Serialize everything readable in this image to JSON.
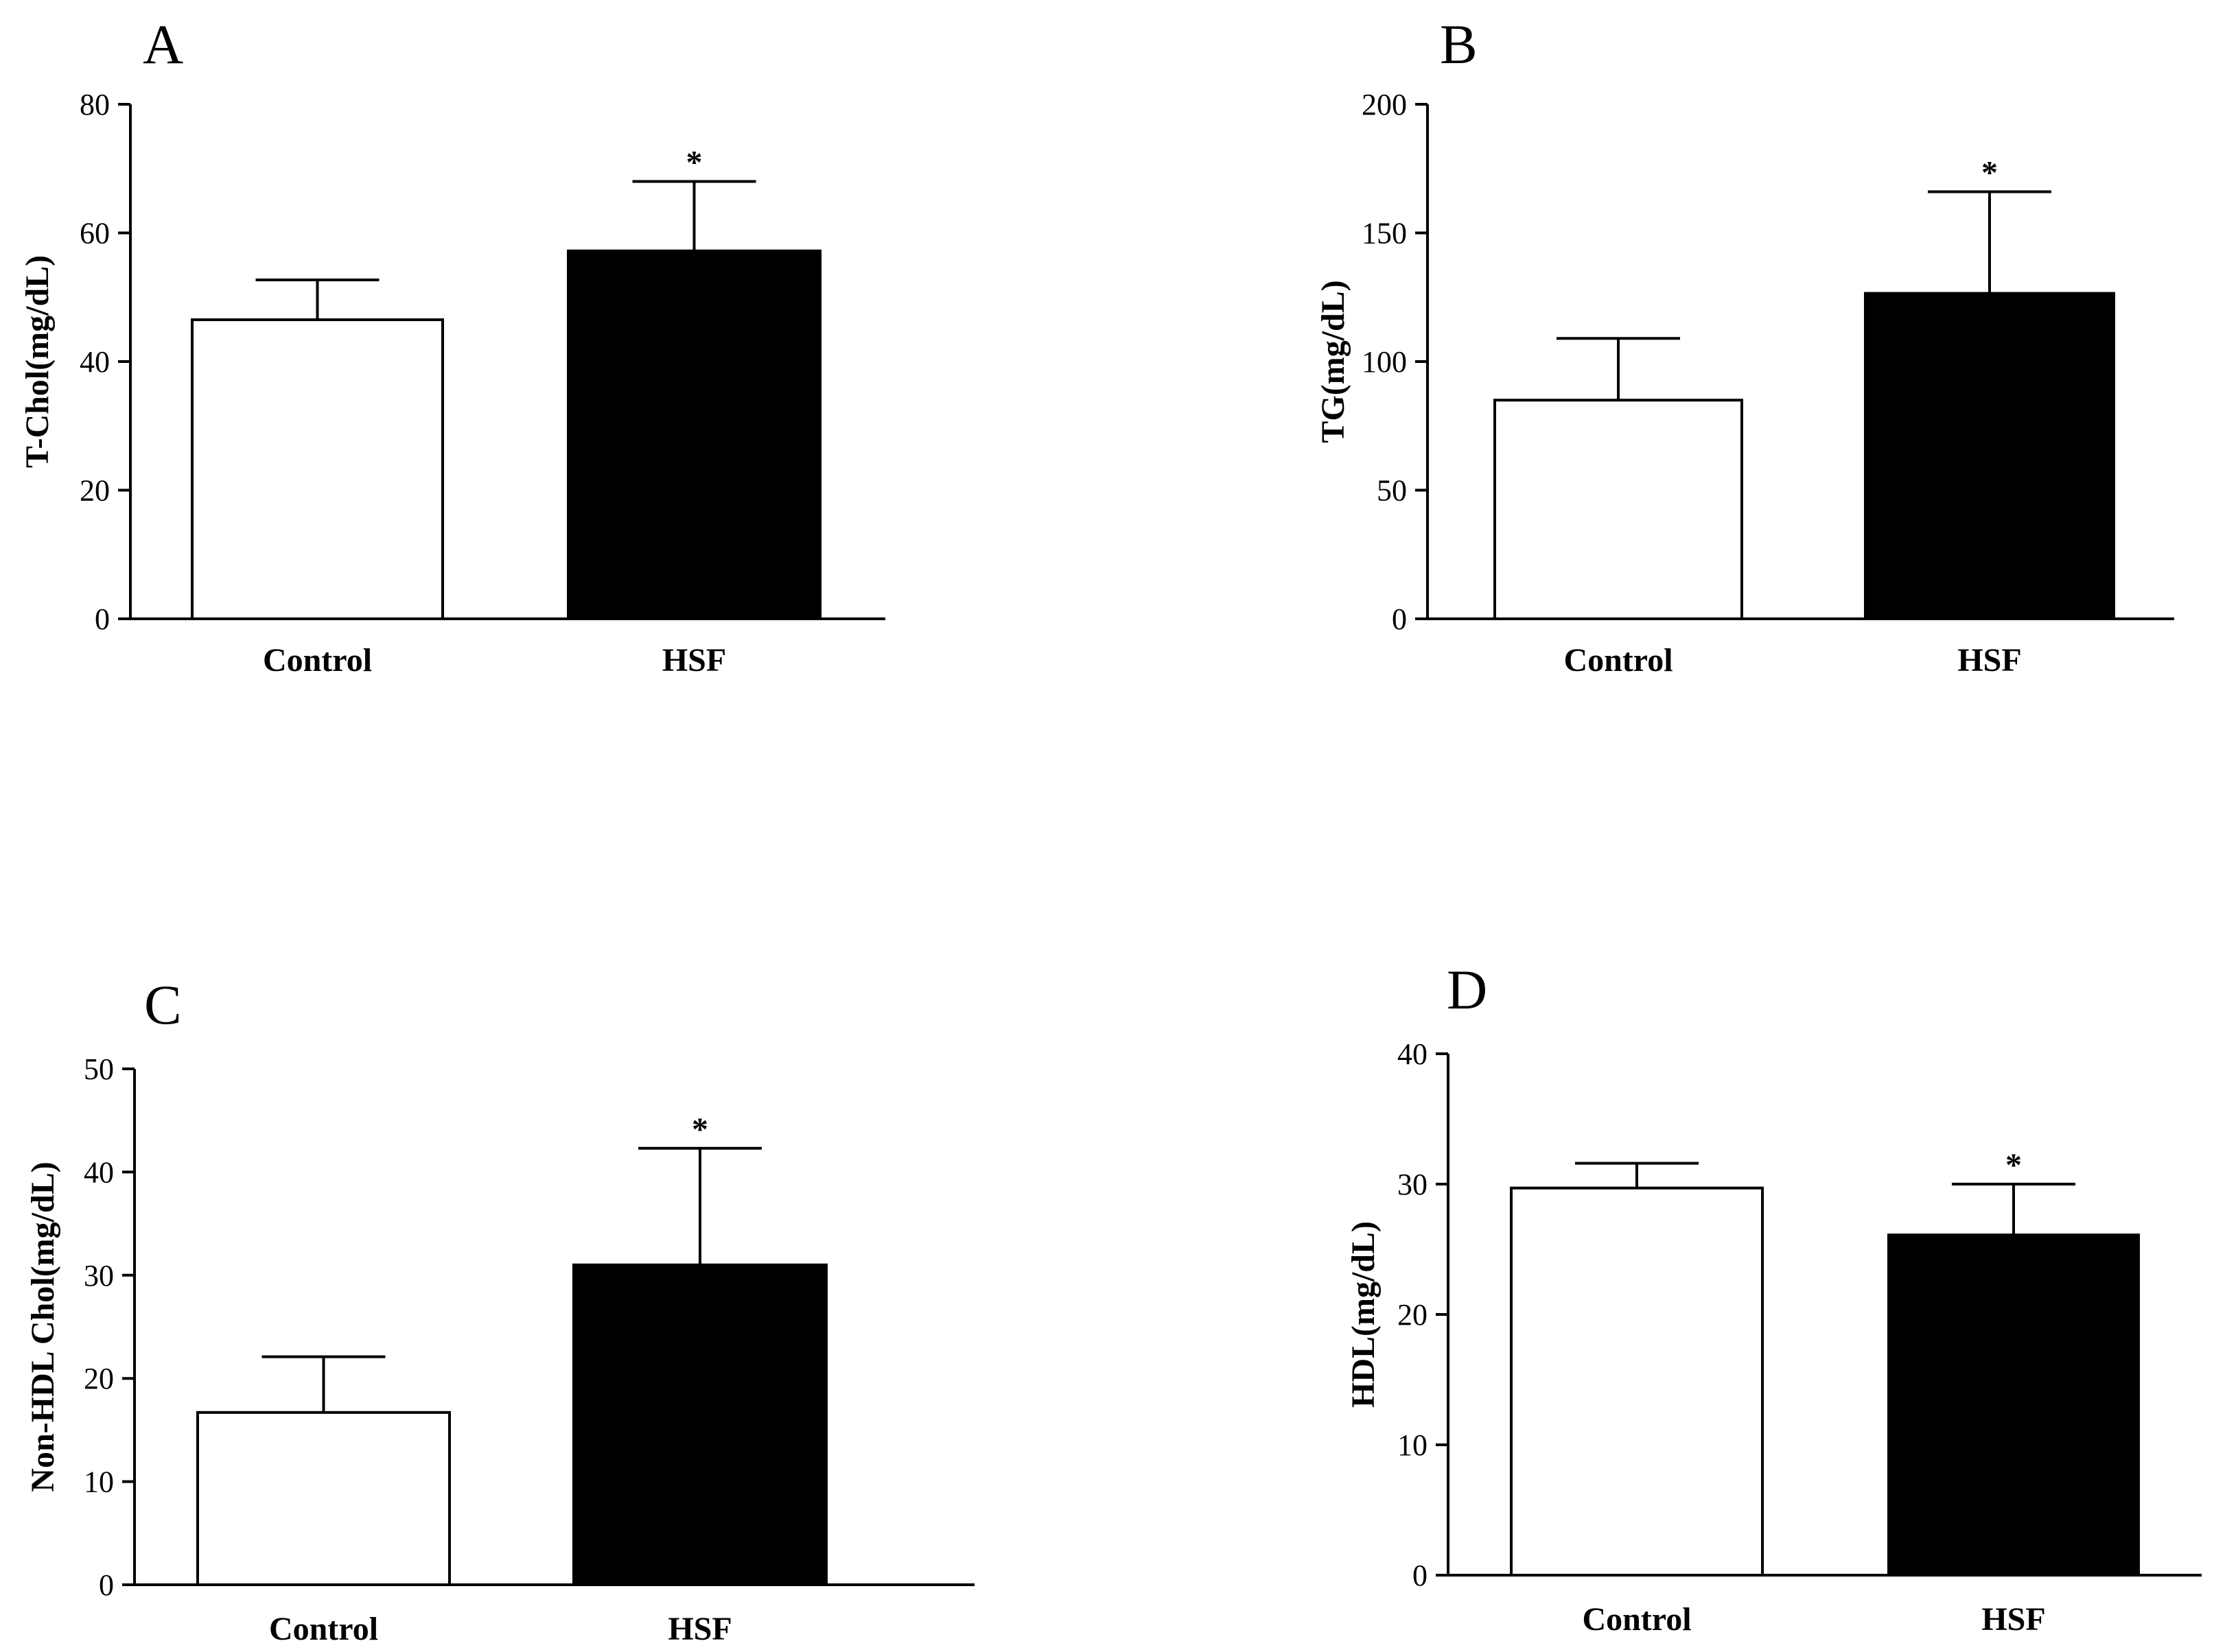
{
  "colors": {
    "control_fill": "#ffffff",
    "hsf_fill": "#000000",
    "stroke": "#000000"
  },
  "chart_data": [
    {
      "panel": "A",
      "type": "bar",
      "categories": [
        "Control",
        "HSF"
      ],
      "values": [
        46.5,
        57.2
      ],
      "errors": [
        6.2,
        10.8
      ],
      "significance": [
        "",
        "*"
      ],
      "ylabel": "T-Chol(mg/dL)",
      "xlabel": "",
      "ylim": [
        0,
        80
      ],
      "yticks": [
        0,
        20,
        40,
        60,
        80
      ],
      "grid": false,
      "legend": "none"
    },
    {
      "panel": "B",
      "type": "bar",
      "categories": [
        "Control",
        "HSF"
      ],
      "values": [
        85,
        126.5
      ],
      "errors": [
        24,
        39.5
      ],
      "significance": [
        "",
        "*"
      ],
      "ylabel": "TG(mg/dL)",
      "xlabel": "",
      "ylim": [
        0,
        200
      ],
      "yticks": [
        0,
        50,
        100,
        150,
        200
      ],
      "grid": false,
      "legend": "none"
    },
    {
      "panel": "C",
      "type": "bar",
      "categories": [
        "Control",
        "HSF"
      ],
      "values": [
        16.7,
        31
      ],
      "errors": [
        5.4,
        11.3
      ],
      "significance": [
        "",
        "*"
      ],
      "ylabel": "Non-HDL Chol(mg/dL)",
      "xlabel": "",
      "ylim": [
        0,
        50
      ],
      "yticks": [
        0,
        10,
        20,
        30,
        40,
        50
      ],
      "grid": false,
      "legend": "none"
    },
    {
      "panel": "D",
      "type": "bar",
      "categories": [
        "Control",
        "HSF"
      ],
      "values": [
        29.7,
        26.1
      ],
      "errors": [
        1.9,
        3.9
      ],
      "significance": [
        "",
        "*"
      ],
      "ylabel": "HDL(mg/dL)",
      "xlabel": "",
      "ylim": [
        0,
        40
      ],
      "yticks": [
        0,
        10,
        20,
        30,
        40
      ],
      "grid": false,
      "legend": "none"
    }
  ]
}
